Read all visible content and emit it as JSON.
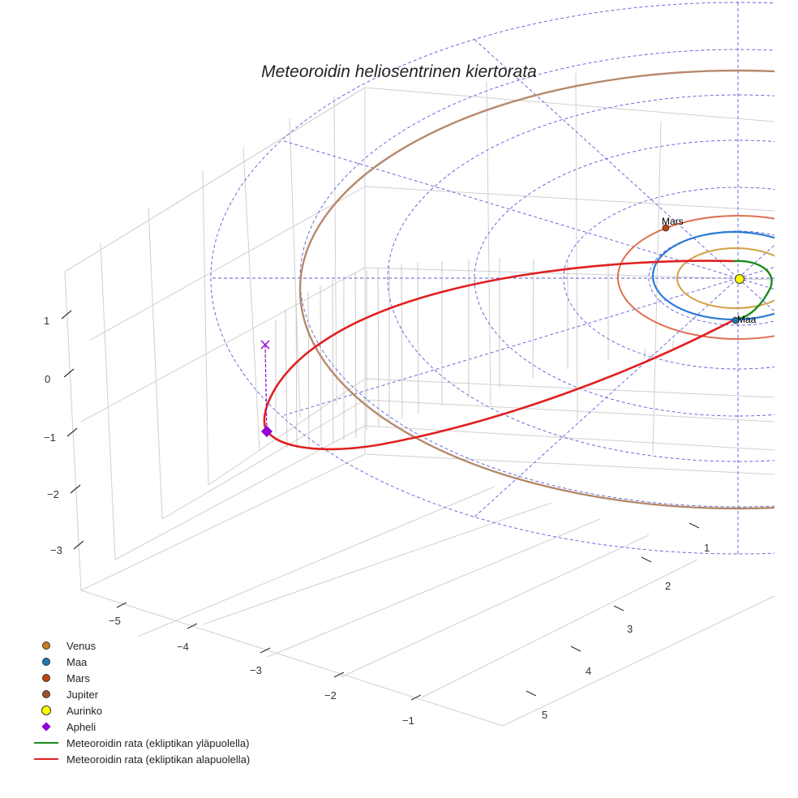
{
  "chart_data": {
    "type": "line",
    "title": "Meteoroidin heliosentrinen kiertorata",
    "axes": {
      "x_ticks": [
        "−5",
        "−4",
        "−3",
        "−2",
        "−1"
      ],
      "y_ticks": [
        "1",
        "2",
        "3",
        "4",
        "5"
      ],
      "z_ticks": [
        "1",
        "0",
        "−1",
        "−2",
        "−3"
      ],
      "grid": true
    },
    "series": [
      {
        "name": "Venus",
        "marker": "circle",
        "color": "#c97e1e"
      },
      {
        "name": "Maa",
        "marker": "circle",
        "color": "#1f77b4"
      },
      {
        "name": "Mars",
        "marker": "circle",
        "color": "#c1440e"
      },
      {
        "name": "Jupiter",
        "marker": "circle",
        "color": "#a0522d"
      },
      {
        "name": "Aurinko",
        "marker": "circle",
        "color": "#ffff00"
      },
      {
        "name": "Apheli",
        "marker": "diamond",
        "color": "#9400d3"
      },
      {
        "name": "Meteoroidin rata (ekliptikan yläpuolella)",
        "marker": "line",
        "color": "#1a8a1a"
      },
      {
        "name": "Meteoroidin rata (ekliptikan alapuolella)",
        "marker": "line",
        "color": "#e02020"
      }
    ],
    "orbit_radii_au": {
      "Venus": 0.72,
      "Maa": 1.0,
      "Mars": 1.52,
      "Jupiter": 5.2
    },
    "point_labels": {
      "mars": "Mars",
      "earth": "Maa"
    },
    "legend_placement": "bottom-left"
  }
}
